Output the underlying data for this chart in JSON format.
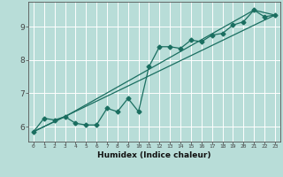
{
  "title": "",
  "xlabel": "Humidex (Indice chaleur)",
  "bg_color": "#b8ddd8",
  "grid_color": "#e8f8f5",
  "line_color": "#1a6e60",
  "xlim": [
    -0.5,
    23.5
  ],
  "ylim": [
    5.55,
    9.75
  ],
  "xticks": [
    0,
    1,
    2,
    3,
    4,
    5,
    6,
    7,
    8,
    9,
    10,
    11,
    12,
    13,
    14,
    15,
    16,
    17,
    18,
    19,
    20,
    21,
    22,
    23
  ],
  "yticks": [
    6,
    7,
    8,
    9
  ],
  "line1_x": [
    0,
    1,
    2,
    3,
    4,
    5,
    6,
    7,
    8,
    9,
    10,
    11,
    12,
    13,
    14,
    15,
    16,
    17,
    18,
    19,
    20,
    21,
    22,
    23
  ],
  "line1_y": [
    5.85,
    6.25,
    6.2,
    6.3,
    6.1,
    6.05,
    6.05,
    6.55,
    6.45,
    6.85,
    6.45,
    7.8,
    8.4,
    8.4,
    8.35,
    8.6,
    8.55,
    8.75,
    8.8,
    9.05,
    9.15,
    9.5,
    9.3,
    9.35
  ],
  "line2_x": [
    0,
    3,
    21,
    23
  ],
  "line2_y": [
    5.85,
    6.3,
    9.5,
    9.35
  ],
  "line3_x": [
    0,
    23
  ],
  "line3_y": [
    5.85,
    9.35
  ]
}
